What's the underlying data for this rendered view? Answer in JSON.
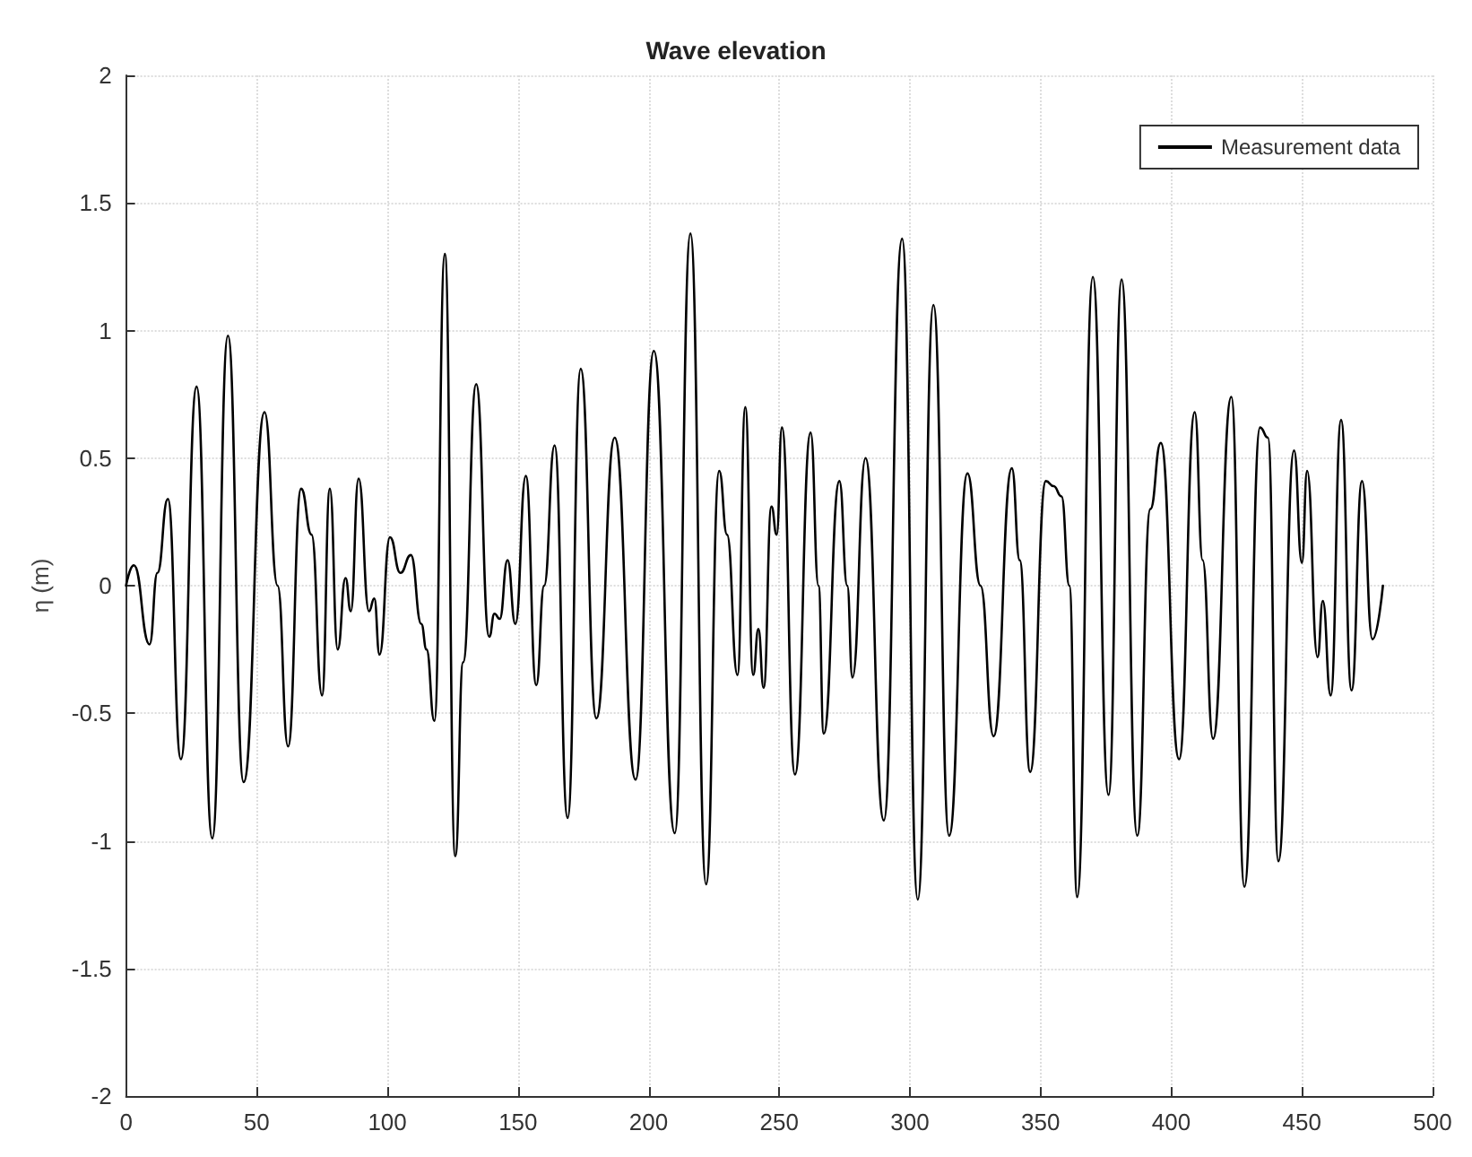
{
  "chart_data": {
    "type": "line",
    "title": "Wave elevation",
    "ylabel": "η (m)",
    "x": [
      0,
      3,
      9,
      12,
      16,
      21,
      27,
      33,
      39,
      45,
      53,
      58,
      62,
      67,
      71,
      75,
      78,
      81,
      84,
      86,
      89,
      93,
      95,
      97,
      101,
      105,
      109,
      113,
      115,
      118,
      122,
      126,
      129,
      134,
      139,
      141,
      143,
      146,
      149,
      153,
      157,
      160,
      164,
      169,
      174,
      180,
      187,
      195,
      202,
      210,
      216,
      222,
      227,
      230,
      234,
      237,
      240,
      242,
      244,
      247,
      249,
      251,
      256,
      262,
      265,
      267,
      273,
      276,
      278,
      283,
      290,
      297,
      303,
      309,
      315,
      322,
      327,
      332,
      339,
      342,
      346,
      352,
      355,
      358,
      361,
      364,
      370,
      376,
      381,
      387,
      392,
      396,
      403,
      409,
      412,
      416,
      423,
      428,
      434,
      437,
      441,
      447,
      450,
      452,
      456,
      458,
      461,
      465,
      469,
      473,
      477,
      481
    ],
    "series": [
      {
        "name": "Measurement data",
        "color": "#000000",
        "values": [
          0,
          0.08,
          -0.23,
          0.05,
          0.34,
          -0.68,
          0.78,
          -0.99,
          0.98,
          -0.77,
          0.68,
          0.0,
          -0.63,
          0.38,
          0.2,
          -0.43,
          0.38,
          -0.25,
          0.03,
          -0.1,
          0.42,
          -0.1,
          -0.05,
          -0.27,
          0.19,
          0.05,
          0.12,
          -0.15,
          -0.25,
          -0.53,
          1.3,
          -1.06,
          -0.3,
          0.79,
          -0.2,
          -0.11,
          -0.13,
          0.1,
          -0.15,
          0.43,
          -0.39,
          0.0,
          0.55,
          -0.91,
          0.85,
          -0.52,
          0.58,
          -0.76,
          0.92,
          -0.97,
          1.38,
          -1.17,
          0.45,
          0.2,
          -0.35,
          0.7,
          -0.35,
          -0.17,
          -0.4,
          0.31,
          0.2,
          0.62,
          -0.74,
          0.6,
          0.0,
          -0.58,
          0.41,
          0.0,
          -0.36,
          0.5,
          -0.92,
          1.36,
          -1.23,
          1.1,
          -0.98,
          0.44,
          0.0,
          -0.59,
          0.46,
          0.1,
          -0.73,
          0.41,
          0.39,
          0.35,
          0.0,
          -1.22,
          1.21,
          -0.82,
          1.2,
          -0.98,
          0.3,
          0.56,
          -0.68,
          0.68,
          0.1,
          -0.6,
          0.74,
          -1.18,
          0.62,
          0.58,
          -1.08,
          0.53,
          0.09,
          0.45,
          -0.28,
          -0.06,
          -0.43,
          0.65,
          -0.41,
          0.41,
          -0.21,
          0
        ]
      }
    ],
    "xlim": [
      0,
      500
    ],
    "xticks": [
      0,
      50,
      100,
      150,
      200,
      250,
      300,
      350,
      400,
      450,
      500
    ],
    "ylim": [
      -2,
      2
    ],
    "yticks": [
      -2,
      -1.5,
      -1,
      -0.5,
      0,
      0.5,
      1,
      1.5,
      2
    ],
    "grid": true,
    "legend": "top right"
  }
}
